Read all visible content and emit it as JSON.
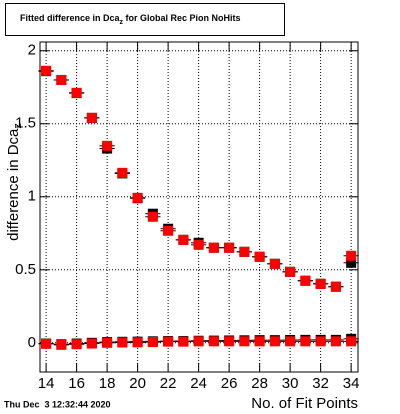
{
  "chart_data": {
    "type": "scatter",
    "title": "Fitted difference in Dca",
    "title_sub": "z",
    "title_rest": " for Global Rec Pion NoHits",
    "x_label": "No. of Fit Points",
    "y_label": "difference in Dca",
    "y_label_sub": "z",
    "timestamp": "Thu Dec  3 12:32:44 2020",
    "x": [
      14,
      15,
      16,
      17,
      18,
      19,
      20,
      21,
      22,
      23,
      24,
      25,
      26,
      27,
      28,
      29,
      30,
      31,
      32,
      33,
      34
    ],
    "series": [
      {
        "color": "#000000",
        "values": [
          1.86,
          1.8,
          1.71,
          1.54,
          1.33,
          1.16,
          0.99,
          0.884,
          0.781,
          0.705,
          0.685,
          0.651,
          0.651,
          0.623,
          0.589,
          0.541,
          0.486,
          0.425,
          0.404,
          0.384,
          0.548
        ]
      },
      {
        "color": "#ff0000",
        "values": [
          1.863,
          1.8,
          1.712,
          1.541,
          1.349,
          1.164,
          0.993,
          0.863,
          0.767,
          0.705,
          0.671,
          0.651,
          0.651,
          0.623,
          0.589,
          0.541,
          0.486,
          0.425,
          0.404,
          0.384,
          0.596
        ]
      },
      {
        "color": "#000000",
        "values": [
          -0.005,
          -0.01,
          -0.005,
          0.0,
          0.005,
          0.007,
          0.008,
          0.01,
          0.012,
          0.012,
          0.014,
          0.015,
          0.016,
          0.017,
          0.018,
          0.018,
          0.019,
          0.02,
          0.02,
          0.02,
          0.027
        ]
      },
      {
        "color": "#ff0000",
        "values": [
          -0.007,
          -0.014,
          -0.01,
          -0.005,
          0.0,
          0.002,
          0.003,
          0.005,
          0.008,
          0.008,
          0.01,
          0.01,
          0.01,
          0.01,
          0.01,
          0.01,
          0.01,
          0.01,
          0.01,
          0.01,
          0.01
        ]
      }
    ],
    "xlim": [
      13.6,
      34.45
    ],
    "ylim": [
      -0.2,
      2.06
    ],
    "xticks": [
      14,
      16,
      18,
      20,
      22,
      24,
      26,
      28,
      30,
      32,
      34
    ],
    "yticks": [
      0,
      0.5,
      1,
      1.5,
      2
    ],
    "grid": true
  }
}
